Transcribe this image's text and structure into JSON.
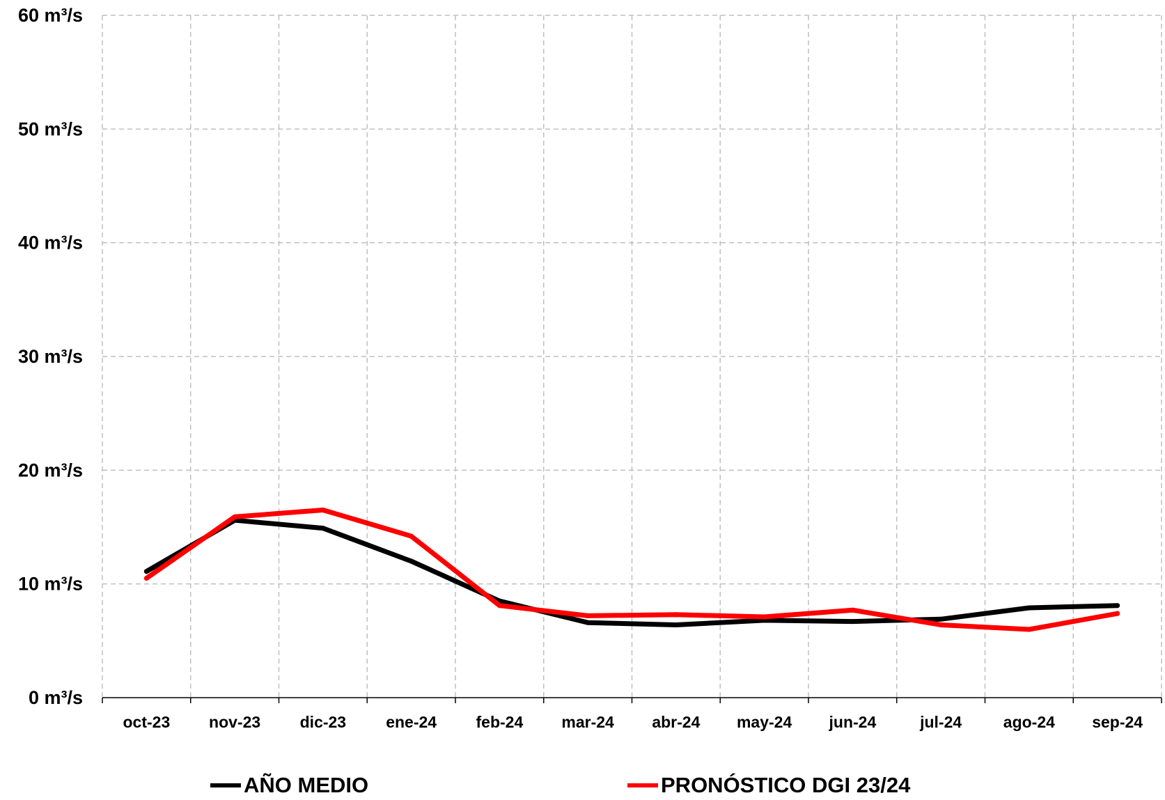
{
  "colors": {
    "background": "#ffffff",
    "grid": "#bfbfbf",
    "axis": "#000000",
    "series_ano_medio": "#000000",
    "series_pronostico": "#ff0000"
  },
  "chart_data": {
    "type": "line",
    "title": "",
    "xlabel": "",
    "ylabel": "",
    "unit": "m³/s",
    "categories": [
      "oct-23",
      "nov-23",
      "dic-23",
      "ene-24",
      "feb-24",
      "mar-24",
      "abr-24",
      "may-24",
      "jun-24",
      "jul-24",
      "ago-24",
      "sep-24"
    ],
    "y_ticks": [
      0,
      10,
      20,
      30,
      40,
      50,
      60
    ],
    "y_tick_labels": [
      "0 m³/s",
      "10 m³/s",
      "20 m³/s",
      "30 m³/s",
      "40 m³/s",
      "50 m³/s",
      "60 m³/s"
    ],
    "ylim": [
      0,
      60
    ],
    "grid": true,
    "grid_style": "dashed",
    "legend_position": "bottom",
    "series": [
      {
        "name": "AÑO MEDIO",
        "color": "#000000",
        "values": [
          11.1,
          15.6,
          14.9,
          12.0,
          8.5,
          6.6,
          6.4,
          6.8,
          6.7,
          6.9,
          7.9,
          8.1
        ]
      },
      {
        "name": "PRONÓSTICO DGI 23/24",
        "color": "#ff0000",
        "values": [
          10.5,
          15.9,
          16.5,
          14.2,
          8.1,
          7.2,
          7.3,
          7.1,
          7.7,
          6.4,
          6.0,
          7.4
        ]
      }
    ]
  }
}
